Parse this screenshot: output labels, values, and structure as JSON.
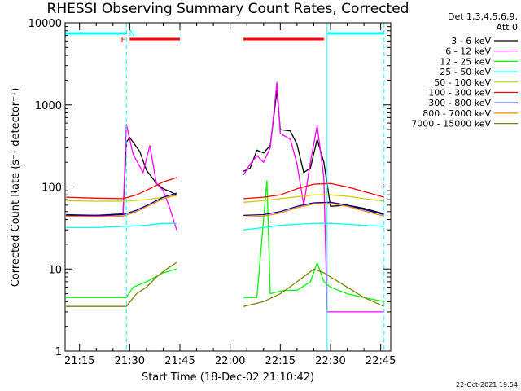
{
  "chart_data": {
    "type": "line",
    "title": "RHESSI Observing Summary Count Rates, Corrected",
    "xlabel": "Start Time (18-Dec-02 21:10:42)",
    "ylabel": "Corrected Count Rate (s⁻¹ detector⁻¹)",
    "yscale": "log",
    "ylim": [
      1,
      10000
    ],
    "y_ticks": [
      1,
      10,
      100,
      1000,
      10000
    ],
    "y_tick_labels": [
      "1",
      "10",
      "100",
      "1000",
      "10000"
    ],
    "xlim": [
      "21:10:42",
      "22:48:00"
    ],
    "x_ticks": [
      "21:15",
      "21:30",
      "21:45",
      "22:00",
      "22:15",
      "22:30",
      "22:45"
    ],
    "legend_header": [
      "Det 1,3,4,5,6,9,",
      "Att 0"
    ],
    "legend_position": "right",
    "timestamp": "22-Oct-2021 19:54",
    "data_gap": [
      "21:45",
      "22:04"
    ],
    "flags": [
      {
        "label": "N",
        "color": "#00ffff",
        "segments": [
          [
            "21:10:42",
            "21:29"
          ],
          [
            "22:29",
            "22:46"
          ]
        ]
      },
      {
        "label": "F",
        "color": "#ff0000",
        "segments": [
          [
            "21:30",
            "21:45"
          ],
          [
            "22:04",
            "22:28"
          ]
        ]
      }
    ],
    "vertical_lines": [
      {
        "time": "21:29",
        "color": "#00ffff",
        "style": "dashed"
      },
      {
        "time": "22:29",
        "color": "#00ffff",
        "style": "solid"
      },
      {
        "time": "22:46",
        "color": "#00ffff",
        "style": "dashed"
      }
    ],
    "series": [
      {
        "name": "3 - 6 keV",
        "color": "#000000",
        "points": [
          [
            "21:11",
            45
          ],
          [
            "21:20",
            45
          ],
          [
            "21:28",
            47
          ],
          [
            "21:29",
            350
          ],
          [
            "21:30",
            400
          ],
          [
            "21:33",
            270
          ],
          [
            "21:35",
            160
          ],
          [
            "21:38",
            110
          ],
          [
            "21:40",
            95
          ],
          [
            "21:42",
            88
          ],
          [
            "21:44",
            80
          ],
          [
            "22:04",
            155
          ],
          [
            "22:06",
            170
          ],
          [
            "22:08",
            280
          ],
          [
            "22:10",
            260
          ],
          [
            "22:12",
            320
          ],
          [
            "22:14",
            1500
          ],
          [
            "22:15",
            500
          ],
          [
            "22:18",
            480
          ],
          [
            "22:20",
            330
          ],
          [
            "22:22",
            150
          ],
          [
            "22:24",
            170
          ],
          [
            "22:26",
            380
          ],
          [
            "22:28",
            200
          ],
          [
            "22:30",
            58
          ],
          [
            "22:35",
            60
          ],
          [
            "22:40",
            55
          ],
          [
            "22:46",
            47
          ]
        ]
      },
      {
        "name": "6 - 12 keV",
        "color": "#ff00ff",
        "points": [
          [
            "21:11",
            44
          ],
          [
            "21:20",
            44
          ],
          [
            "21:28",
            46
          ],
          [
            "21:29",
            580
          ],
          [
            "21:31",
            250
          ],
          [
            "21:34",
            150
          ],
          [
            "21:36",
            320
          ],
          [
            "21:38",
            110
          ],
          [
            "21:40",
            90
          ],
          [
            "21:42",
            55
          ],
          [
            "21:44",
            30
          ],
          [
            "22:04",
            140
          ],
          [
            "22:06",
            190
          ],
          [
            "22:08",
            240
          ],
          [
            "22:10",
            200
          ],
          [
            "22:12",
            300
          ],
          [
            "22:14",
            1900
          ],
          [
            "22:15",
            450
          ],
          [
            "22:18",
            380
          ],
          [
            "22:20",
            190
          ],
          [
            "22:22",
            60
          ],
          [
            "22:24",
            200
          ],
          [
            "22:26",
            560
          ],
          [
            "22:28",
            130
          ],
          [
            "22:29",
            3
          ],
          [
            "22:35",
            3
          ],
          [
            "22:40",
            3
          ],
          [
            "22:46",
            3
          ]
        ]
      },
      {
        "name": "12 - 25 keV",
        "color": "#00ff00",
        "points": [
          [
            "21:11",
            4.5
          ],
          [
            "21:20",
            4.5
          ],
          [
            "21:28",
            4.5
          ],
          [
            "21:29",
            4.5
          ],
          [
            "21:31",
            6
          ],
          [
            "21:35",
            7
          ],
          [
            "21:40",
            9
          ],
          [
            "21:44",
            10
          ],
          [
            "22:04",
            4.5
          ],
          [
            "22:08",
            4.5
          ],
          [
            "22:11",
            120
          ],
          [
            "22:12",
            5
          ],
          [
            "22:16",
            5.5
          ],
          [
            "22:20",
            5.5
          ],
          [
            "22:24",
            7
          ],
          [
            "22:26",
            12
          ],
          [
            "22:28",
            7
          ],
          [
            "22:30",
            6
          ],
          [
            "22:35",
            5
          ],
          [
            "22:40",
            4.5
          ],
          [
            "22:46",
            4
          ]
        ]
      },
      {
        "name": "25 - 50 keV",
        "color": "#00ffff",
        "points": [
          [
            "21:11",
            32
          ],
          [
            "21:20",
            32
          ],
          [
            "21:28",
            33
          ],
          [
            "21:29",
            33
          ],
          [
            "21:35",
            34
          ],
          [
            "21:40",
            36
          ],
          [
            "21:44",
            36
          ],
          [
            "22:04",
            30
          ],
          [
            "22:10",
            32
          ],
          [
            "22:15",
            34
          ],
          [
            "22:20",
            35
          ],
          [
            "22:25",
            36
          ],
          [
            "22:30",
            36
          ],
          [
            "22:35",
            35
          ],
          [
            "22:40",
            34
          ],
          [
            "22:46",
            33
          ]
        ]
      },
      {
        "name": "50 - 100 keV",
        "color": "#cccc00",
        "points": [
          [
            "21:11",
            68
          ],
          [
            "21:20",
            67
          ],
          [
            "21:28",
            67
          ],
          [
            "21:35",
            70
          ],
          [
            "21:40",
            75
          ],
          [
            "21:44",
            78
          ],
          [
            "22:04",
            65
          ],
          [
            "22:10",
            68
          ],
          [
            "22:15",
            72
          ],
          [
            "22:20",
            76
          ],
          [
            "22:25",
            80
          ],
          [
            "22:30",
            80
          ],
          [
            "22:35",
            77
          ],
          [
            "22:40",
            72
          ],
          [
            "22:46",
            67
          ]
        ]
      },
      {
        "name": "100 - 300 keV",
        "color": "#ff0000",
        "points": [
          [
            "21:11",
            75
          ],
          [
            "21:20",
            73
          ],
          [
            "21:28",
            72
          ],
          [
            "21:32",
            80
          ],
          [
            "21:36",
            95
          ],
          [
            "21:40",
            115
          ],
          [
            "21:44",
            130
          ],
          [
            "22:04",
            72
          ],
          [
            "22:10",
            75
          ],
          [
            "22:15",
            80
          ],
          [
            "22:20",
            95
          ],
          [
            "22:25",
            108
          ],
          [
            "22:30",
            110
          ],
          [
            "22:35",
            100
          ],
          [
            "22:40",
            88
          ],
          [
            "22:46",
            75
          ]
        ]
      },
      {
        "name": "300 - 800 keV",
        "color": "#0000aa",
        "points": [
          [
            "21:11",
            46
          ],
          [
            "21:20",
            45
          ],
          [
            "21:28",
            46
          ],
          [
            "21:32",
            52
          ],
          [
            "21:36",
            62
          ],
          [
            "21:40",
            75
          ],
          [
            "21:44",
            84
          ],
          [
            "22:04",
            45
          ],
          [
            "22:10",
            46
          ],
          [
            "22:15",
            50
          ],
          [
            "22:20",
            58
          ],
          [
            "22:25",
            64
          ],
          [
            "22:30",
            65
          ],
          [
            "22:35",
            60
          ],
          [
            "22:40",
            53
          ],
          [
            "22:46",
            46
          ]
        ]
      },
      {
        "name": "800 - 7000 keV",
        "color": "#ff8800",
        "points": [
          [
            "21:11",
            44
          ],
          [
            "21:20",
            43
          ],
          [
            "21:28",
            44
          ],
          [
            "21:32",
            50
          ],
          [
            "21:36",
            60
          ],
          [
            "21:40",
            72
          ],
          [
            "21:44",
            80
          ],
          [
            "22:04",
            43
          ],
          [
            "22:10",
            44
          ],
          [
            "22:15",
            48
          ],
          [
            "22:20",
            56
          ],
          [
            "22:25",
            62
          ],
          [
            "22:30",
            63
          ],
          [
            "22:35",
            58
          ],
          [
            "22:40",
            51
          ],
          [
            "22:46",
            44
          ]
        ]
      },
      {
        "name": "7000 - 15000 keV",
        "color": "#808000",
        "points": [
          [
            "21:11",
            3.5
          ],
          [
            "21:20",
            3.5
          ],
          [
            "21:28",
            3.5
          ],
          [
            "21:29",
            3.5
          ],
          [
            "21:32",
            5
          ],
          [
            "21:35",
            6
          ],
          [
            "21:38",
            8
          ],
          [
            "21:41",
            10
          ],
          [
            "21:44",
            12
          ],
          [
            "22:04",
            3.5
          ],
          [
            "22:10",
            4
          ],
          [
            "22:15",
            5
          ],
          [
            "22:20",
            7
          ],
          [
            "22:25",
            10
          ],
          [
            "22:28",
            9
          ],
          [
            "22:30",
            8
          ],
          [
            "22:35",
            6
          ],
          [
            "22:40",
            4.5
          ],
          [
            "22:46",
            3.5
          ]
        ]
      }
    ]
  }
}
